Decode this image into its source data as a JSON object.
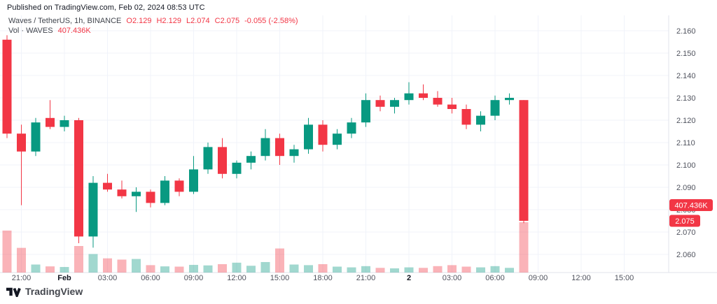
{
  "published_line": "Published on TradingView.com, Feb 02, 2024 08:53 UTC",
  "legend": {
    "symbol": "Waves / TetherUS, 1h, BINANCE",
    "open": "O2.129",
    "high": "H2.129",
    "low": "L2.074",
    "close": "C2.075",
    "change": "-0.055 (-2.58%)",
    "volume_label": "Vol · WAVES",
    "volume_value": "407.436K"
  },
  "footer": {
    "logo_text": "TradingView"
  },
  "colors": {
    "up": "#089981",
    "down": "#f23645",
    "up_volume": "rgba(8,153,129,0.38)",
    "down_volume": "rgba(242,54,69,0.38)",
    "grid": "#f0f3fa",
    "axis_border": "#e0e3eb",
    "axis_text": "#50535e",
    "axis_text_bold": "#131722",
    "badge_bg": "#f23645",
    "badge_text": "#ffffff"
  },
  "chart_data": {
    "type": "candlestick",
    "title": "Waves / TetherUS, 1h, BINANCE",
    "price_badge": "2.075",
    "volume_badge": "407.436K",
    "y_axis_side": "right",
    "grid": true,
    "ylim": [
      2.055,
      2.165
    ],
    "y_ticks": [
      "2.160",
      "2.150",
      "2.140",
      "2.130",
      "2.120",
      "2.110",
      "2.100",
      "2.090",
      "2.080",
      "2.070",
      "2.060"
    ],
    "x_ticks": [
      {
        "label": "21:00",
        "index": 1,
        "bold": false
      },
      {
        "label": "Feb",
        "index": 4,
        "bold": true
      },
      {
        "label": "03:00",
        "index": 7,
        "bold": false
      },
      {
        "label": "06:00",
        "index": 10,
        "bold": false
      },
      {
        "label": "09:00",
        "index": 13,
        "bold": false
      },
      {
        "label": "12:00",
        "index": 16,
        "bold": false
      },
      {
        "label": "15:00",
        "index": 19,
        "bold": false
      },
      {
        "label": "18:00",
        "index": 22,
        "bold": false
      },
      {
        "label": "21:00",
        "index": 25,
        "bold": false
      },
      {
        "label": "2",
        "index": 28,
        "bold": true
      },
      {
        "label": "03:00",
        "index": 31,
        "bold": false
      },
      {
        "label": "06:00",
        "index": 34,
        "bold": false
      },
      {
        "label": "09:00",
        "index": 37,
        "bold": false
      },
      {
        "label": "12:00",
        "index": 40,
        "bold": false
      },
      {
        "label": "15:00",
        "index": 43,
        "bold": false
      }
    ],
    "volume_unit": "K",
    "candles": [
      {
        "t": "20:00",
        "o": 2.156,
        "h": 2.158,
        "l": 2.112,
        "c": 2.114,
        "v": 340
      },
      {
        "t": "21:00",
        "o": 2.114,
        "h": 2.118,
        "l": 2.082,
        "c": 2.106,
        "v": 200
      },
      {
        "t": "22:00",
        "o": 2.106,
        "h": 2.121,
        "l": 2.104,
        "c": 2.119,
        "v": 65
      },
      {
        "t": "23:00",
        "o": 2.121,
        "h": 2.129,
        "l": 2.116,
        "c": 2.117,
        "v": 50
      },
      {
        "t": "00:00",
        "o": 2.117,
        "h": 2.122,
        "l": 2.115,
        "c": 2.12,
        "v": 45
      },
      {
        "t": "01:00",
        "o": 2.12,
        "h": 2.121,
        "l": 2.065,
        "c": 2.068,
        "v": 215
      },
      {
        "t": "02:00",
        "o": 2.068,
        "h": 2.095,
        "l": 2.063,
        "c": 2.092,
        "v": 150
      },
      {
        "t": "03:00",
        "o": 2.092,
        "h": 2.096,
        "l": 2.088,
        "c": 2.089,
        "v": 115
      },
      {
        "t": "04:00",
        "o": 2.089,
        "h": 2.093,
        "l": 2.085,
        "c": 2.086,
        "v": 105
      },
      {
        "t": "05:00",
        "o": 2.086,
        "h": 2.09,
        "l": 2.079,
        "c": 2.088,
        "v": 110
      },
      {
        "t": "06:00",
        "o": 2.088,
        "h": 2.089,
        "l": 2.081,
        "c": 2.083,
        "v": 60
      },
      {
        "t": "07:00",
        "o": 2.083,
        "h": 2.095,
        "l": 2.082,
        "c": 2.093,
        "v": 50
      },
      {
        "t": "08:00",
        "o": 2.093,
        "h": 2.094,
        "l": 2.086,
        "c": 2.088,
        "v": 48
      },
      {
        "t": "09:00",
        "o": 2.088,
        "h": 2.104,
        "l": 2.087,
        "c": 2.098,
        "v": 62
      },
      {
        "t": "10:00",
        "o": 2.098,
        "h": 2.11,
        "l": 2.096,
        "c": 2.108,
        "v": 58
      },
      {
        "t": "11:00",
        "o": 2.108,
        "h": 2.112,
        "l": 2.094,
        "c": 2.096,
        "v": 68
      },
      {
        "t": "12:00",
        "o": 2.096,
        "h": 2.102,
        "l": 2.094,
        "c": 2.101,
        "v": 80
      },
      {
        "t": "13:00",
        "o": 2.101,
        "h": 2.106,
        "l": 2.098,
        "c": 2.104,
        "v": 55
      },
      {
        "t": "14:00",
        "o": 2.104,
        "h": 2.116,
        "l": 2.102,
        "c": 2.112,
        "v": 85
      },
      {
        "t": "15:00",
        "o": 2.112,
        "h": 2.114,
        "l": 2.1,
        "c": 2.104,
        "v": 195
      },
      {
        "t": "16:00",
        "o": 2.104,
        "h": 2.109,
        "l": 2.101,
        "c": 2.107,
        "v": 65
      },
      {
        "t": "17:00",
        "o": 2.107,
        "h": 2.121,
        "l": 2.105,
        "c": 2.118,
        "v": 60
      },
      {
        "t": "18:00",
        "o": 2.118,
        "h": 2.12,
        "l": 2.106,
        "c": 2.109,
        "v": 68
      },
      {
        "t": "19:00",
        "o": 2.109,
        "h": 2.116,
        "l": 2.107,
        "c": 2.114,
        "v": 48
      },
      {
        "t": "20:00",
        "o": 2.114,
        "h": 2.121,
        "l": 2.112,
        "c": 2.119,
        "v": 42
      },
      {
        "t": "21:00",
        "o": 2.119,
        "h": 2.132,
        "l": 2.117,
        "c": 2.129,
        "v": 52
      },
      {
        "t": "22:00",
        "o": 2.129,
        "h": 2.131,
        "l": 2.124,
        "c": 2.126,
        "v": 38
      },
      {
        "t": "23:00",
        "o": 2.126,
        "h": 2.13,
        "l": 2.123,
        "c": 2.129,
        "v": 34
      },
      {
        "t": "00:00",
        "o": 2.129,
        "h": 2.137,
        "l": 2.127,
        "c": 2.132,
        "v": 42
      },
      {
        "t": "01:00",
        "o": 2.132,
        "h": 2.136,
        "l": 2.129,
        "c": 2.13,
        "v": 38
      },
      {
        "t": "02:00",
        "o": 2.13,
        "h": 2.133,
        "l": 2.126,
        "c": 2.127,
        "v": 52
      },
      {
        "t": "03:00",
        "o": 2.127,
        "h": 2.13,
        "l": 2.123,
        "c": 2.125,
        "v": 60
      },
      {
        "t": "04:00",
        "o": 2.125,
        "h": 2.127,
        "l": 2.116,
        "c": 2.118,
        "v": 48
      },
      {
        "t": "05:00",
        "o": 2.118,
        "h": 2.124,
        "l": 2.115,
        "c": 2.122,
        "v": 42
      },
      {
        "t": "06:00",
        "o": 2.122,
        "h": 2.131,
        "l": 2.12,
        "c": 2.129,
        "v": 52
      },
      {
        "t": "07:00",
        "o": 2.129,
        "h": 2.132,
        "l": 2.127,
        "c": 2.13,
        "v": 38
      },
      {
        "t": "08:00",
        "o": 2.129,
        "h": 2.129,
        "l": 2.074,
        "c": 2.075,
        "v": 407.436
      }
    ]
  }
}
